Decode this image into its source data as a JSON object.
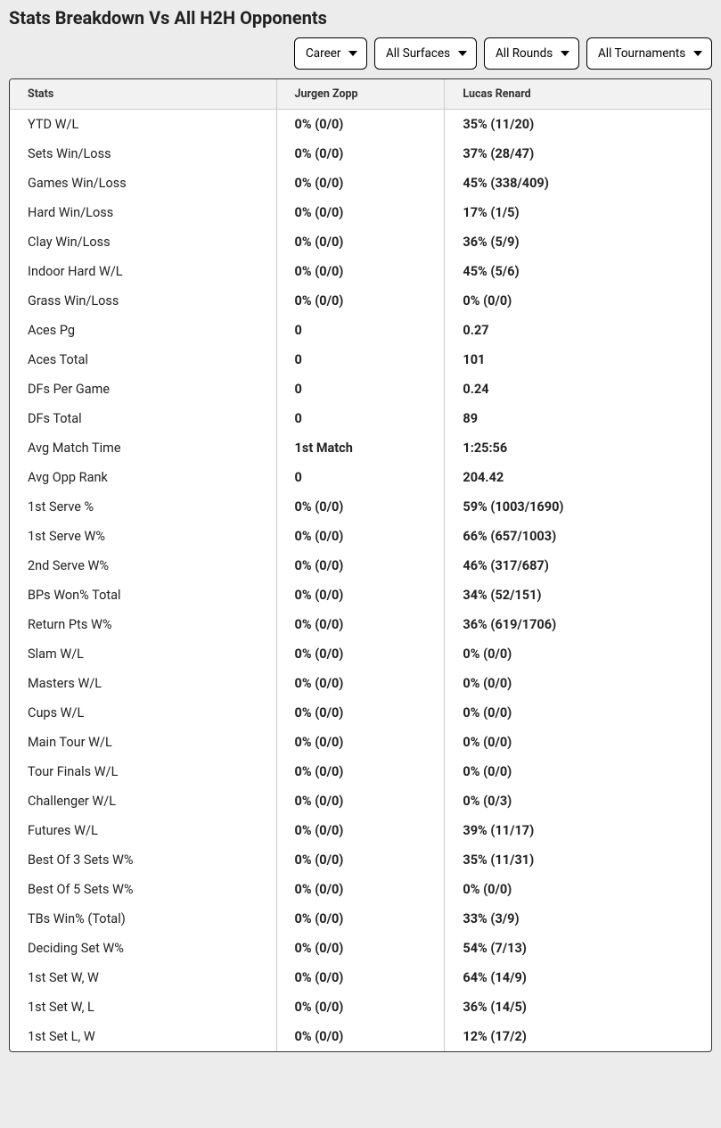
{
  "title": "Stats Breakdown Vs All H2H Opponents",
  "filters": {
    "timeframe": {
      "selected": "Career"
    },
    "surface": {
      "selected": "All Surfaces"
    },
    "round": {
      "selected": "All Rounds"
    },
    "tournament": {
      "selected": "All Tournaments"
    }
  },
  "columns": {
    "c0": "Stats",
    "c1": "Jurgen Zopp",
    "c2": "Lucas Renard"
  },
  "rows": [
    {
      "stat": "YTD W/L",
      "p1": "0% (0/0)",
      "p2": "35% (11/20)"
    },
    {
      "stat": "Sets Win/Loss",
      "p1": "0% (0/0)",
      "p2": "37% (28/47)"
    },
    {
      "stat": "Games Win/Loss",
      "p1": "0% (0/0)",
      "p2": "45% (338/409)"
    },
    {
      "stat": "Hard Win/Loss",
      "p1": "0% (0/0)",
      "p2": "17% (1/5)"
    },
    {
      "stat": "Clay Win/Loss",
      "p1": "0% (0/0)",
      "p2": "36% (5/9)"
    },
    {
      "stat": "Indoor Hard W/L",
      "p1": "0% (0/0)",
      "p2": "45% (5/6)"
    },
    {
      "stat": "Grass Win/Loss",
      "p1": "0% (0/0)",
      "p2": "0% (0/0)"
    },
    {
      "stat": "Aces Pg",
      "p1": "0",
      "p2": "0.27"
    },
    {
      "stat": "Aces Total",
      "p1": "0",
      "p2": "101"
    },
    {
      "stat": "DFs Per Game",
      "p1": "0",
      "p2": "0.24"
    },
    {
      "stat": "DFs Total",
      "p1": "0",
      "p2": "89"
    },
    {
      "stat": "Avg Match Time",
      "p1": "1st Match",
      "p2": "1:25:56"
    },
    {
      "stat": "Avg Opp Rank",
      "p1": "0",
      "p2": "204.42"
    },
    {
      "stat": "1st Serve %",
      "p1": "0% (0/0)",
      "p2": "59% (1003/1690)"
    },
    {
      "stat": "1st Serve W%",
      "p1": "0% (0/0)",
      "p2": "66% (657/1003)"
    },
    {
      "stat": "2nd Serve W%",
      "p1": "0% (0/0)",
      "p2": "46% (317/687)"
    },
    {
      "stat": "BPs Won% Total",
      "p1": "0% (0/0)",
      "p2": "34% (52/151)"
    },
    {
      "stat": "Return Pts W%",
      "p1": "0% (0/0)",
      "p2": "36% (619/1706)"
    },
    {
      "stat": "Slam W/L",
      "p1": "0% (0/0)",
      "p2": "0% (0/0)"
    },
    {
      "stat": "Masters W/L",
      "p1": "0% (0/0)",
      "p2": "0% (0/0)"
    },
    {
      "stat": "Cups W/L",
      "p1": "0% (0/0)",
      "p2": "0% (0/0)"
    },
    {
      "stat": "Main Tour W/L",
      "p1": "0% (0/0)",
      "p2": "0% (0/0)"
    },
    {
      "stat": "Tour Finals W/L",
      "p1": "0% (0/0)",
      "p2": "0% (0/0)"
    },
    {
      "stat": "Challenger W/L",
      "p1": "0% (0/0)",
      "p2": "0% (0/3)"
    },
    {
      "stat": "Futures W/L",
      "p1": "0% (0/0)",
      "p2": "39% (11/17)"
    },
    {
      "stat": "Best Of 3 Sets W%",
      "p1": "0% (0/0)",
      "p2": "35% (11/31)"
    },
    {
      "stat": "Best Of 5 Sets W%",
      "p1": "0% (0/0)",
      "p2": "0% (0/0)"
    },
    {
      "stat": "TBs Win% (Total)",
      "p1": "0% (0/0)",
      "p2": "33% (3/9)"
    },
    {
      "stat": "Deciding Set W%",
      "p1": "0% (0/0)",
      "p2": "54% (7/13)"
    },
    {
      "stat": "1st Set W, W",
      "p1": "0% (0/0)",
      "p2": "64% (14/9)"
    },
    {
      "stat": "1st Set W, L",
      "p1": "0% (0/0)",
      "p2": "36% (14/5)"
    },
    {
      "stat": "1st Set L, W",
      "p1": "0% (0/0)",
      "p2": "12% (17/2)"
    }
  ]
}
